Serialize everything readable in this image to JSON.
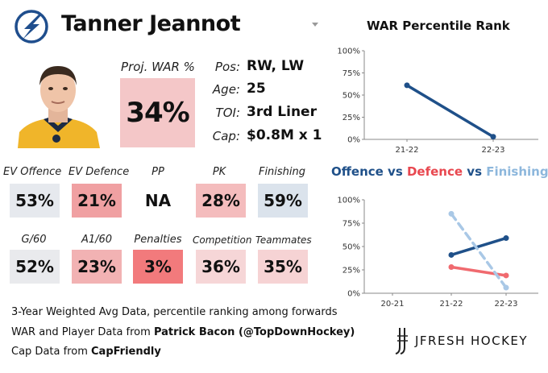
{
  "header": {
    "player_name": "Tanner Jeannot",
    "team_logo_icon": "lightning-bolt-logo-icon",
    "dropdown_icon": "chevron-down-icon"
  },
  "projection": {
    "label": "Proj. WAR %",
    "value": "34%",
    "color": "#f4c7c8"
  },
  "info": [
    {
      "label": "Pos:",
      "value": "RW, LW"
    },
    {
      "label": "Age:",
      "value": "25"
    },
    {
      "label": "TOI:",
      "value": "3rd Liner"
    },
    {
      "label": "Cap:",
      "value": "$0.8M x 1"
    }
  ],
  "stats_row1": [
    {
      "label": "EV Offence",
      "value": "53%",
      "color": "#e6e9ee"
    },
    {
      "label": "EV Defence",
      "value": "21%",
      "color": "#f0a0a2"
    },
    {
      "label": "PP",
      "value": "NA",
      "color": "#ffffff"
    },
    {
      "label": "PK",
      "value": "28%",
      "color": "#f4bcbd"
    },
    {
      "label": "Finishing",
      "value": "59%",
      "color": "#dbe3ec"
    }
  ],
  "stats_row2": [
    {
      "label": "G/60",
      "value": "52%",
      "color": "#e9eaed"
    },
    {
      "label": "A1/60",
      "value": "23%",
      "color": "#f2b2b3"
    },
    {
      "label": "Penalties",
      "value": "3%",
      "color": "#f27a7c"
    },
    {
      "label": "Competition",
      "value": "36%",
      "color": "#f6d6d7"
    },
    {
      "label": "Teammates",
      "value": "35%",
      "color": "#f6d3d4"
    }
  ],
  "footer": {
    "line1": "3-Year Weighted Avg Data, percentile ranking among forwards",
    "line2_prefix": "WAR and Player Data from ",
    "line2_bold": "Patrick Bacon (@TopDownHockey)",
    "line3_prefix": "Cap Data from ",
    "line3_bold": "CapFriendly"
  },
  "brand": {
    "name": "JFRESH HOCKEY",
    "logo_icon": "jfresh-logo-icon"
  },
  "chart_data": [
    {
      "type": "line",
      "title": "WAR Percentile Rank",
      "categories": [
        "21-22",
        "22-23"
      ],
      "series": [
        {
          "values": [
            61,
            3
          ],
          "color": "#1f5089",
          "dashed": false
        }
      ],
      "ylim": [
        0,
        100
      ],
      "yticks": [
        "0%",
        "25%",
        "50%",
        "75%",
        "100%"
      ],
      "grid": false
    },
    {
      "type": "line",
      "title_parts": [
        {
          "text": "Offence",
          "color": "#1f5089"
        },
        {
          "text": " vs ",
          "color": "#1f5089"
        },
        {
          "text": "Defence",
          "color": "#e8474f"
        },
        {
          "text": " vs ",
          "color": "#1f5089"
        },
        {
          "text": "Finishing",
          "color": "#8db7dc"
        }
      ],
      "categories": [
        "20-21",
        "21-22",
        "22-23"
      ],
      "series": [
        {
          "values": [
            null,
            41,
            59
          ],
          "color": "#1f5089",
          "dashed": false
        },
        {
          "values": [
            null,
            28,
            19
          ],
          "color": "#f06a6f",
          "dashed": false
        },
        {
          "values": [
            null,
            85,
            6
          ],
          "color": "#a9c8e6",
          "dashed": true
        }
      ],
      "ylim": [
        0,
        100
      ],
      "yticks": [
        "0%",
        "25%",
        "50%",
        "75%",
        "100%"
      ],
      "grid": false
    }
  ]
}
